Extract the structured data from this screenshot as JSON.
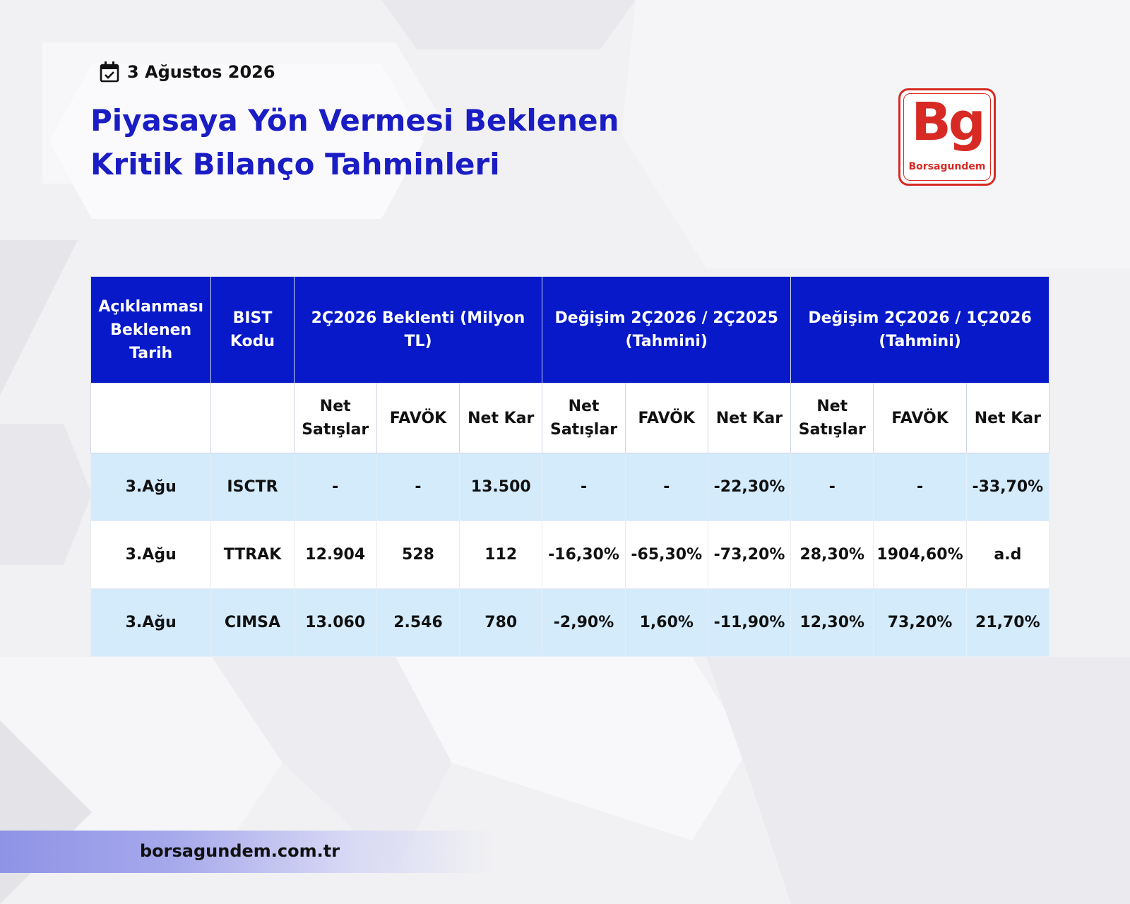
{
  "header": {
    "date": "3 Ağustos 2026",
    "title_lines": [
      "Piyasaya Yön Vermesi Beklenen",
      "Kritik Bilanço Tahminleri"
    ]
  },
  "logo": {
    "mark": "Bg",
    "name": "Borsagundem"
  },
  "table": {
    "group_headers": {
      "date": "Açıklanması Beklenen Tarih",
      "code": "BIST Kodu",
      "expectation": "2Ç2026 Beklenti (Milyon TL)",
      "yoy": "Değişim 2Ç2026 / 2Ç2025 (Tahmini)",
      "qoq": "Değişim 2Ç2026 / 1Ç2026 (Tahmini)"
    },
    "sub_headers": [
      "Net Satışlar",
      "FAVÖK",
      "Net Kar",
      "Net Satışlar",
      "FAVÖK",
      "Net Kar",
      "Net Satışlar",
      "FAVÖK",
      "Net Kar"
    ],
    "rows": [
      [
        "3.Ağu",
        "ISCTR",
        "-",
        "-",
        "13.500",
        "-",
        "-",
        "-22,30%",
        "-",
        "-",
        "-33,70%"
      ],
      [
        "3.Ağu",
        "TTRAK",
        "12.904",
        "528",
        "112",
        "-16,30%",
        "-65,30%",
        "-73,20%",
        "28,30%",
        "1904,60%",
        "a.d"
      ],
      [
        "3.Ağu",
        "CIMSA",
        "13.060",
        "2.546",
        "780",
        "-2,90%",
        "1,60%",
        "-11,90%",
        "12,30%",
        "73,20%",
        "21,70%"
      ]
    ]
  },
  "footer": {
    "url": "borsagundem.com.tr"
  },
  "colors": {
    "brand_blue": "#0719c9",
    "title_blue": "#1a1cc4",
    "logo_red": "#d82a24",
    "row_blue": "#d4ebfc"
  }
}
